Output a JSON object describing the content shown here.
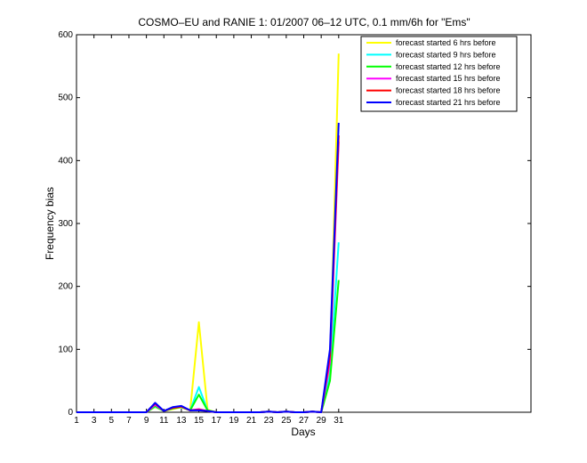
{
  "chart_data": {
    "type": "line",
    "title": "COSMO–EU and RANIE 1: 01/2007 06–12 UTC, 0.1 mm/6h for \"Ems\"",
    "xlabel": "Days",
    "ylabel": "Frequency bias",
    "xlim": [
      1,
      53
    ],
    "ylim": [
      0,
      600
    ],
    "xticks": [
      1,
      3,
      5,
      7,
      9,
      11,
      13,
      15,
      17,
      19,
      21,
      23,
      25,
      27,
      29,
      31
    ],
    "yticks": [
      0,
      100,
      200,
      300,
      400,
      500,
      600
    ],
    "legend_position": "top-right",
    "grid": false,
    "series": [
      {
        "name": "forecast started 6 hrs before",
        "color": "#ffff00",
        "x": [
          1,
          2,
          3,
          4,
          5,
          6,
          7,
          8,
          9,
          10,
          11,
          12,
          13,
          14,
          15,
          16,
          17,
          18,
          19,
          20,
          21,
          22,
          23,
          24,
          25,
          26,
          27,
          28,
          29,
          30,
          31
        ],
        "values": [
          0,
          0,
          0,
          0,
          0,
          0,
          0,
          0,
          0,
          8,
          2,
          5,
          8,
          3,
          143,
          4,
          0,
          0,
          0,
          0,
          0,
          0,
          1,
          0,
          1,
          0,
          0,
          1,
          0,
          70,
          570
        ]
      },
      {
        "name": "forecast started 9 hrs before",
        "color": "#00ffff",
        "x": [
          1,
          2,
          3,
          4,
          5,
          6,
          7,
          8,
          9,
          10,
          11,
          12,
          13,
          14,
          15,
          16,
          17,
          18,
          19,
          20,
          21,
          22,
          23,
          24,
          25,
          26,
          27,
          28,
          29,
          30,
          31
        ],
        "values": [
          0,
          0,
          0,
          0,
          0,
          0,
          0,
          0,
          0,
          9,
          2,
          6,
          9,
          3,
          40,
          3,
          0,
          0,
          0,
          0,
          0,
          0,
          1,
          0,
          1,
          0,
          0,
          1,
          0,
          60,
          270
        ]
      },
      {
        "name": "forecast started 12 hrs before",
        "color": "#00ff00",
        "x": [
          1,
          2,
          3,
          4,
          5,
          6,
          7,
          8,
          9,
          10,
          11,
          12,
          13,
          14,
          15,
          16,
          17,
          18,
          19,
          20,
          21,
          22,
          23,
          24,
          25,
          26,
          27,
          28,
          29,
          30,
          31
        ],
        "values": [
          0,
          0,
          0,
          0,
          0,
          0,
          0,
          0,
          0,
          10,
          2,
          6,
          8,
          3,
          28,
          3,
          0,
          0,
          0,
          0,
          0,
          0,
          1,
          0,
          1,
          0,
          0,
          1,
          0,
          50,
          210
        ]
      },
      {
        "name": "forecast started 15 hrs before",
        "color": "#ff00ff",
        "x": [
          1,
          2,
          3,
          4,
          5,
          6,
          7,
          8,
          9,
          10,
          11,
          12,
          13,
          14,
          15,
          16,
          17,
          18,
          19,
          20,
          21,
          22,
          23,
          24,
          25,
          26,
          27,
          28,
          29,
          30,
          31
        ],
        "values": [
          0,
          0,
          0,
          0,
          0,
          0,
          0,
          0,
          0,
          12,
          2,
          7,
          9,
          3,
          5,
          2,
          0,
          0,
          0,
          0,
          0,
          0,
          1,
          0,
          1,
          0,
          0,
          1,
          0,
          80,
          430
        ]
      },
      {
        "name": "forecast started 18 hrs before",
        "color": "#ff0000",
        "x": [
          1,
          2,
          3,
          4,
          5,
          6,
          7,
          8,
          9,
          10,
          11,
          12,
          13,
          14,
          15,
          16,
          17,
          18,
          19,
          20,
          21,
          22,
          23,
          24,
          25,
          26,
          27,
          28,
          29,
          30,
          31
        ],
        "values": [
          0,
          0,
          0,
          0,
          0,
          0,
          0,
          0,
          0,
          14,
          2,
          7,
          9,
          3,
          4,
          2,
          0,
          0,
          0,
          0,
          0,
          0,
          1,
          0,
          1,
          0,
          0,
          1,
          0,
          90,
          440
        ]
      },
      {
        "name": "forecast started 21 hrs before",
        "color": "#0000ff",
        "x": [
          1,
          2,
          3,
          4,
          5,
          6,
          7,
          8,
          9,
          10,
          11,
          12,
          13,
          14,
          15,
          16,
          17,
          18,
          19,
          20,
          21,
          22,
          23,
          24,
          25,
          26,
          27,
          28,
          29,
          30,
          31
        ],
        "values": [
          0,
          0,
          0,
          0,
          0,
          0,
          0,
          0,
          0,
          15,
          2,
          8,
          10,
          3,
          3,
          2,
          0,
          0,
          0,
          0,
          0,
          0,
          1,
          0,
          1,
          0,
          0,
          1,
          0,
          100,
          460
        ]
      }
    ]
  }
}
